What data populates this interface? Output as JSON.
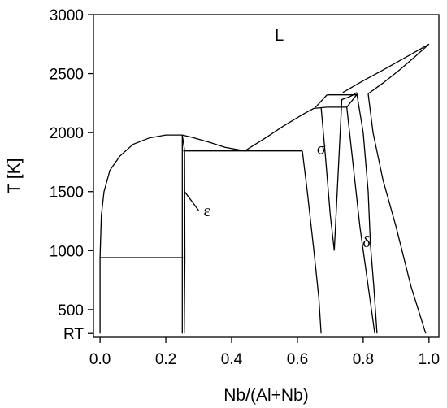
{
  "chart_data": {
    "type": "line",
    "xlabel": "Nb/(Al+Nb)",
    "ylabel": "T [K]",
    "xlim": [
      -0.02,
      1.03
    ],
    "ylim": [
      265,
      3000
    ],
    "xticks": [
      {
        "value": 0.0,
        "label": "0.0"
      },
      {
        "value": 0.2,
        "label": "0.2"
      },
      {
        "value": 0.4,
        "label": "0.4"
      },
      {
        "value": 0.6,
        "label": "0.6"
      },
      {
        "value": 0.8,
        "label": "0.8"
      },
      {
        "value": 1.0,
        "label": "1.0"
      }
    ],
    "yticks": [
      {
        "value": 298,
        "label": "RT"
      },
      {
        "value": 500,
        "label": "500"
      },
      {
        "value": 1000,
        "label": "1000"
      },
      {
        "value": 1500,
        "label": "1500"
      },
      {
        "value": 2000,
        "label": "2000"
      },
      {
        "value": 2500,
        "label": "2500"
      },
      {
        "value": 3000,
        "label": "3000"
      }
    ],
    "phase_labels": [
      {
        "text": "L",
        "x": 0.545,
        "y": 2780
      },
      {
        "text": "σ",
        "x": 0.672,
        "y": 1820
      },
      {
        "text": "ε",
        "x": 0.325,
        "y": 1290
      },
      {
        "text": "δ",
        "x": 0.81,
        "y": 1030
      }
    ],
    "label_pointers": [
      {
        "x": [
          0.257,
          0.3
        ],
        "y": [
          1500,
          1340
        ]
      }
    ],
    "series": [
      {
        "x": [
          0.0,
          0.0,
          0.004,
          0.012,
          0.03,
          0.06,
          0.1,
          0.15,
          0.2,
          0.25
        ],
        "y": [
          298,
          940,
          1300,
          1500,
          1680,
          1800,
          1900,
          1955,
          1980,
          1980
        ]
      },
      {
        "x": [
          0.25,
          0.28,
          0.33,
          0.38,
          0.44
        ],
        "y": [
          1980,
          1960,
          1920,
          1875,
          1845
        ]
      },
      {
        "x": [
          0.44,
          0.5,
          0.56,
          0.62,
          0.65,
          0.69
        ],
        "y": [
          1845,
          1950,
          2060,
          2160,
          2205,
          2215
        ]
      },
      {
        "x": [
          0.0,
          0.253
        ],
        "y": [
          940,
          940
        ]
      },
      {
        "x": [
          0.253,
          0.615
        ],
        "y": [
          1845,
          1845
        ]
      },
      {
        "x": [
          0.25,
          0.25
        ],
        "y": [
          298,
          1980
        ]
      },
      {
        "x": [
          0.25,
          0.257,
          0.258,
          0.256
        ],
        "y": [
          1980,
          1850,
          940,
          298
        ]
      },
      {
        "x": [
          0.615,
          0.63,
          0.65,
          0.665,
          0.672
        ],
        "y": [
          1845,
          1500,
          1000,
          600,
          298
        ]
      },
      {
        "x": [
          0.672,
          0.685,
          0.7,
          0.712
        ],
        "y": [
          2215,
          1800,
          1300,
          1000
        ]
      },
      {
        "x": [
          0.69,
          0.75,
          0.78
        ],
        "y": [
          2215,
          2215,
          2320
        ]
      },
      {
        "x": [
          0.655,
          0.69
        ],
        "y": [
          2215,
          2320
        ]
      },
      {
        "x": [
          0.69,
          0.785
        ],
        "y": [
          2320,
          2320
        ]
      },
      {
        "x": [
          0.75,
          0.79,
          0.835
        ],
        "y": [
          2215,
          1200,
          298
        ]
      },
      {
        "x": [
          0.712,
          0.735,
          0.755,
          0.77,
          0.78
        ],
        "y": [
          1000,
          2280,
          2300,
          2320,
          2340
        ]
      },
      {
        "x": [
          0.78,
          0.8,
          0.815,
          0.822
        ],
        "y": [
          2340,
          2000,
          1500,
          1050
        ]
      },
      {
        "x": [
          0.822,
          0.832,
          0.842
        ],
        "y": [
          1050,
          700,
          298
        ]
      },
      {
        "x": [
          0.815,
          0.83,
          0.86,
          0.9,
          0.945,
          0.99
        ],
        "y": [
          2330,
          2000,
          1600,
          1200,
          700,
          298
        ]
      },
      {
        "x": [
          0.738,
          0.8,
          0.86,
          0.93,
          1.0
        ],
        "y": [
          2340,
          2440,
          2530,
          2640,
          2750
        ]
      },
      {
        "x": [
          0.815,
          0.86,
          0.91,
          0.96,
          1.0
        ],
        "y": [
          2330,
          2420,
          2530,
          2650,
          2750
        ]
      }
    ]
  }
}
